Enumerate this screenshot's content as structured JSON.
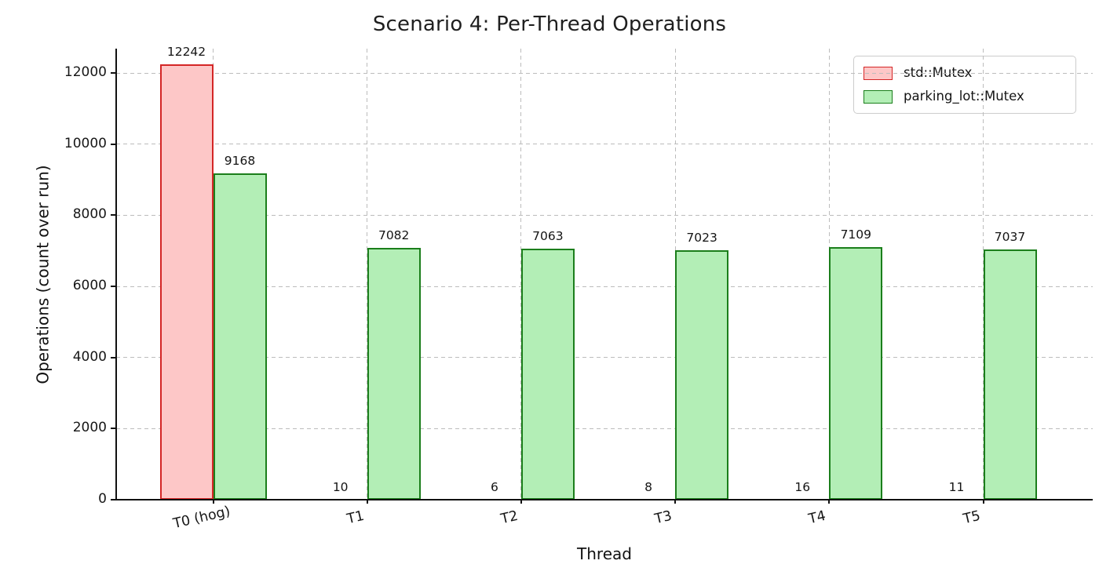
{
  "title": "Scenario 4: Per-Thread Operations",
  "chart_data": {
    "type": "bar",
    "title": "Scenario 4: Per-Thread Operations",
    "xlabel": "Thread",
    "ylabel": "Operations (count over run)",
    "categories": [
      "T0 (hog)",
      "T1",
      "T2",
      "T3",
      "T4",
      "T5"
    ],
    "series": [
      {
        "name": "std::Mutex",
        "values": [
          12242,
          10,
          6,
          8,
          16,
          11
        ],
        "fill_color": "#fdc7c7",
        "edge_color": "#d42626"
      },
      {
        "name": "parking_lot::Mutex",
        "values": [
          9168,
          7082,
          7063,
          7023,
          7109,
          7037
        ],
        "fill_color": "#b3eeb6",
        "edge_color": "#1b7e1b"
      }
    ],
    "yticks": [
      0,
      2000,
      4000,
      6000,
      8000,
      10000,
      12000
    ],
    "ylim": [
      0,
      12684
    ],
    "grid": "dashed",
    "grid_color": "#bcbcbc",
    "legend_position": "upper right",
    "bar_value_labels": true
  }
}
